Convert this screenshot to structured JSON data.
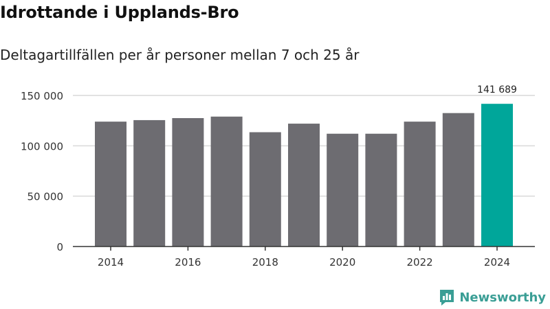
{
  "header": {
    "title": "Idrottande i Upplands-Bro",
    "subtitle": "Deltagartillfällen per år personer mellan 7 och 25 år"
  },
  "brand": {
    "name": "Newsworthy",
    "icon": "newsworthy-logo-icon"
  },
  "colors": {
    "bar": "#6d6c71",
    "highlight": "#00a69a",
    "grid": "#d9d9d9",
    "axis": "#333333",
    "brand": "#3a9e95"
  },
  "chart_data": {
    "type": "bar",
    "title": "Idrottande i Upplands-Bro",
    "subtitle": "Deltagartillfällen per år personer mellan 7 och 25 år",
    "xlabel": "",
    "ylabel": "",
    "categories": [
      "2014",
      "2015",
      "2016",
      "2017",
      "2018",
      "2019",
      "2020",
      "2021",
      "2022",
      "2023",
      "2024"
    ],
    "values": [
      124000,
      125500,
      127500,
      129000,
      113500,
      122000,
      112000,
      112000,
      124000,
      132500,
      141689
    ],
    "ylim": [
      0,
      150000
    ],
    "yticks": [
      0,
      50000,
      100000,
      150000
    ],
    "ytick_labels": [
      "0",
      "50 000",
      "100 000",
      "150 000"
    ],
    "xtick_labels": [
      "2014",
      "2016",
      "2018",
      "2020",
      "2022",
      "2024"
    ],
    "highlight_index": 10,
    "data_labels": [
      {
        "index": 10,
        "text": "141 689"
      }
    ],
    "grid": true,
    "legend": "none"
  }
}
